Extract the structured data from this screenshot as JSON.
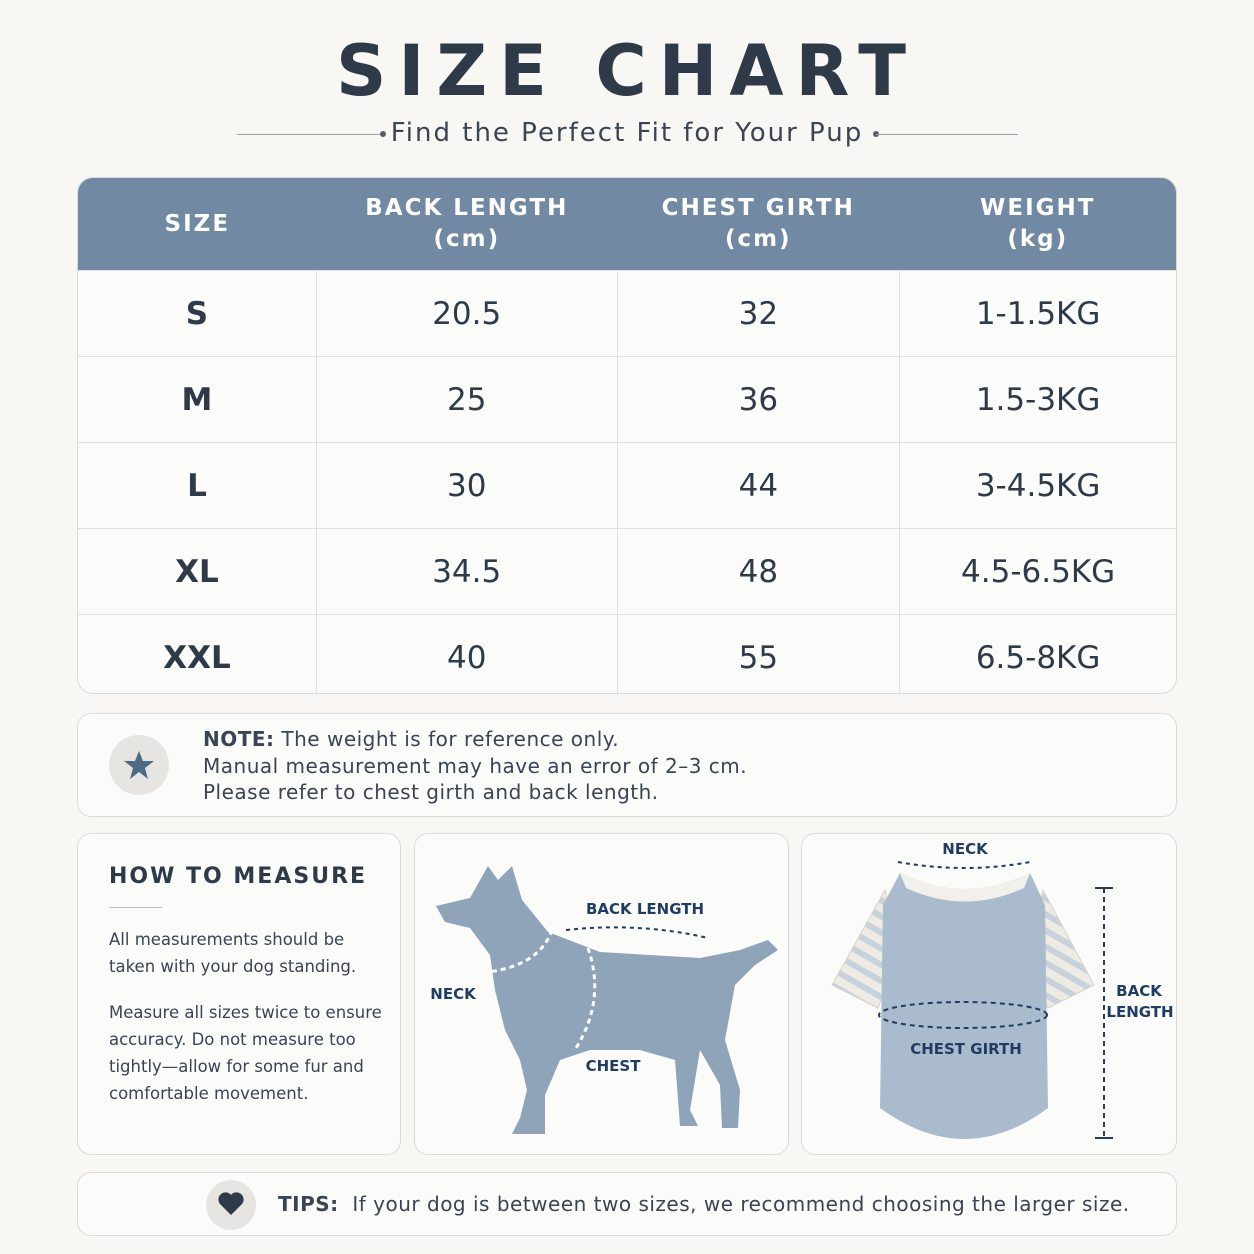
{
  "header": {
    "title": "SIZE CHART",
    "subtitle": "Find the Perfect Fit for Your Pup"
  },
  "table": {
    "columns": [
      {
        "label": "SIZE"
      },
      {
        "label": "BACK LENGTH",
        "unit": "(cm)"
      },
      {
        "label": "CHEST GIRTH",
        "unit": "(cm)"
      },
      {
        "label": "WEIGHT",
        "unit": "(kg)"
      }
    ],
    "rows": [
      [
        "S",
        20.5,
        32,
        "1-1.5KG"
      ],
      [
        "M",
        25,
        36,
        "1.5-3KG"
      ],
      [
        "L",
        30,
        44,
        "3-4.5KG"
      ],
      [
        "XL",
        34.5,
        48,
        "4.5-6.5KG"
      ],
      [
        "XXL",
        40,
        55,
        "6.5-8KG"
      ]
    ]
  },
  "note": {
    "label": "NOTE:",
    "lines": [
      "The weight is for reference only.",
      "Manual measurement may have an error of 2–3 cm.",
      "Please refer to chest girth and back length."
    ]
  },
  "how_to": {
    "title": "HOW TO MEASURE",
    "paragraphs": [
      "All measurements should be taken with your dog standing.",
      "Measure all sizes twice to ensure accuracy. Do not measure too tightly—allow for some fur and comfortable movement."
    ]
  },
  "dog_diagram": {
    "back": "BACK LENGTH",
    "neck": "NECK",
    "chest": "CHEST"
  },
  "shirt_diagram": {
    "neck": "NECK",
    "chest": "CHEST GIRTH",
    "back": [
      "BACK",
      "LENGTH"
    ]
  },
  "tips": {
    "label": "TIPS:",
    "text": "If your dog is between two sizes, we recommend choosing the larger size."
  }
}
